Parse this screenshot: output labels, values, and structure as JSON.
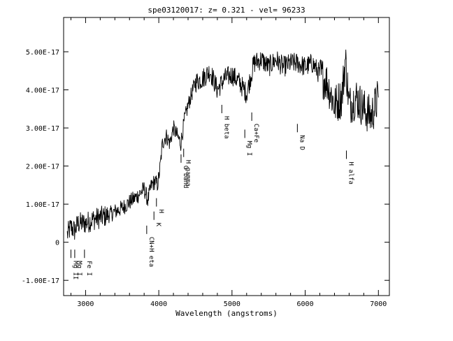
{
  "chart_data": {
    "type": "line",
    "title": "spe03120017: z= 0.321  -  vel= 96233",
    "xlabel": "Wavelength (angstroms)",
    "ylabel": "",
    "xlim": [
      2700,
      7150
    ],
    "ylim": [
      -1.4e-17,
      5.9e-17
    ],
    "grid": false,
    "x_ticks": [
      {
        "value": 3000,
        "label": "3000"
      },
      {
        "value": 4000,
        "label": "4000"
      },
      {
        "value": 5000,
        "label": "5000"
      },
      {
        "value": 6000,
        "label": "6000"
      },
      {
        "value": 7000,
        "label": "7000"
      }
    ],
    "y_ticks": [
      {
        "value": -1e-17,
        "label": "-1.00E-17"
      },
      {
        "value": 0,
        "label": "0"
      },
      {
        "value": 1e-17,
        "label": "1.00E-17"
      },
      {
        "value": 2e-17,
        "label": "2.00E-17"
      },
      {
        "value": 3e-17,
        "label": "3.00E-17"
      },
      {
        "value": 4e-17,
        "label": "4.00E-17"
      },
      {
        "value": 5e-17,
        "label": "5.00E-17"
      }
    ],
    "series": [
      {
        "color": "#000000",
        "x": [
          2750,
          2800,
          2850,
          2900,
          3000,
          3100,
          3200,
          3300,
          3400,
          3500,
          3600,
          3700,
          3800,
          3850,
          3900,
          3950,
          3980,
          4000,
          4020,
          4050,
          4100,
          4150,
          4200,
          4250,
          4300,
          4350,
          4400,
          4450,
          4500,
          4600,
          4700,
          4800,
          4900,
          5000,
          5100,
          5200,
          5300,
          5400,
          5500,
          5600,
          5700,
          5800,
          5900,
          6000,
          6100,
          6200,
          6300,
          6400,
          6500,
          6550,
          6600,
          6700,
          6800,
          6900,
          7000
        ],
        "y": [
          2e-18,
          4e-18,
          3e-18,
          5e-18,
          5e-18,
          6e-18,
          6.5e-18,
          7e-18,
          8e-18,
          9e-18,
          1.05e-17,
          1.2e-17,
          1.4e-17,
          1.1e-17,
          1.5e-17,
          1.6e-17,
          1.5e-17,
          1.7e-17,
          2e-17,
          2.6e-17,
          2.8e-17,
          2.6e-17,
          3e-17,
          2.8e-17,
          2.6e-17,
          3.2e-17,
          3.6e-17,
          3.9e-17,
          4.2e-17,
          4.3e-17,
          4.5e-17,
          4e-17,
          4.3e-17,
          4.4e-17,
          4.2e-17,
          3.9e-17,
          4.7e-17,
          4.8e-17,
          4.6e-17,
          4.8e-17,
          4.6e-17,
          4.7e-17,
          4.7e-17,
          4.6e-17,
          4.7e-17,
          4.4e-17,
          4.2e-17,
          3.6e-17,
          3.8e-17,
          4.8e-17,
          3.6e-17,
          3.8e-17,
          3.5e-17,
          3.3e-17,
          3.8e-17
        ]
      }
    ],
    "annotations": [
      {
        "text": "Mg I",
        "x": 2852,
        "y": -4.5e-18
      },
      {
        "text": "Mg II",
        "x": 2800,
        "y": -4.5e-18
      },
      {
        "text": "Fe I",
        "x": 2985,
        "y": -4.5e-18
      },
      {
        "text": "CN+H eta",
        "x": 3835,
        "y": 1.8e-18
      },
      {
        "text": "K",
        "x": 3934,
        "y": 5.5e-18
      },
      {
        "text": "H",
        "x": 3968,
        "y": 9e-18
      },
      {
        "text": "H gamma",
        "x": 4340,
        "y": 2.2e-17
      },
      {
        "text": "G band",
        "x": 4304,
        "y": 2.05e-17
      },
      {
        "text": "H beta",
        "x": 4861,
        "y": 3.35e-17
      },
      {
        "text": "Mg I",
        "x": 5175,
        "y": 2.7e-17
      },
      {
        "text": "Ca+Fe",
        "x": 5270,
        "y": 3.15e-17
      },
      {
        "text": "Na D",
        "x": 5893,
        "y": 2.85e-17
      },
      {
        "text": "H alfa",
        "x": 6563,
        "y": 2.15e-17
      }
    ]
  }
}
